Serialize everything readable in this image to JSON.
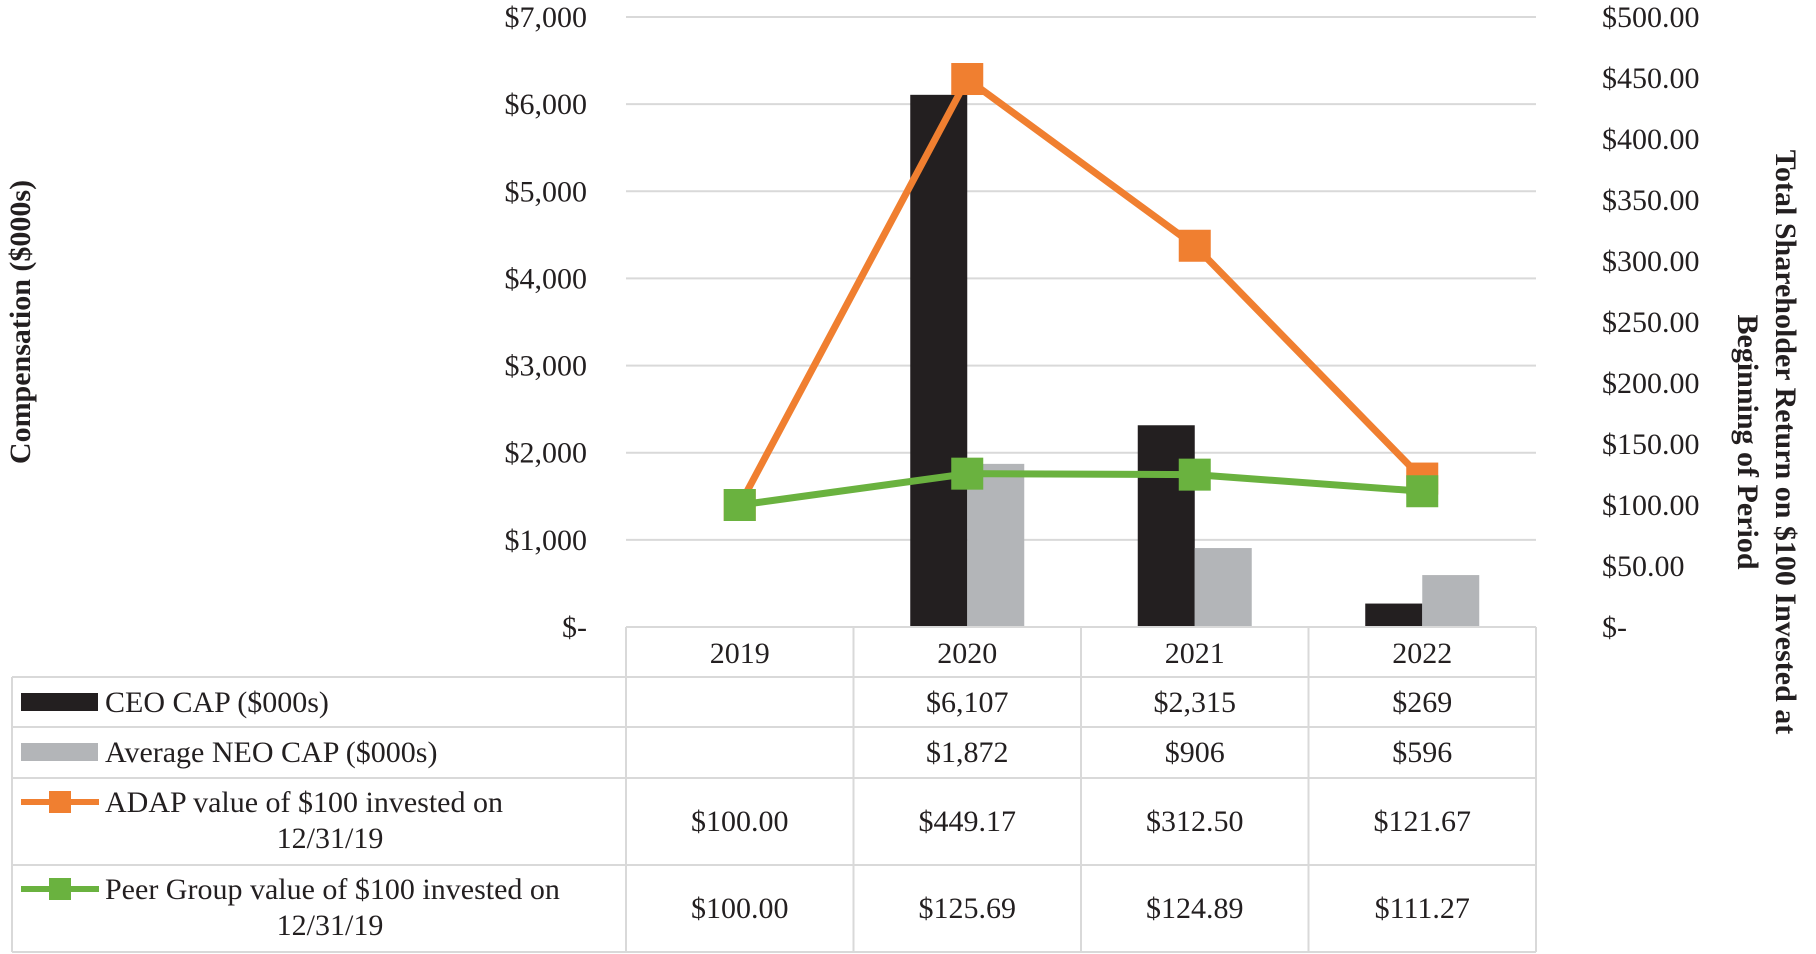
{
  "chart_data": {
    "type": "bar",
    "categories": [
      "2019",
      "2020",
      "2021",
      "2022"
    ],
    "bar_series": [
      {
        "name": "CEO CAP ($000s)",
        "values": [
          null,
          6107,
          2315,
          269
        ],
        "labels": [
          "",
          "$6,107",
          "$2,315",
          "$269"
        ],
        "color": "#231f20",
        "axis": "left"
      },
      {
        "name": "Average NEO CAP ($000s)",
        "values": [
          null,
          1872,
          906,
          596
        ],
        "labels": [
          "",
          "$1,872",
          "$906",
          "$596"
        ],
        "color": "#b3b5b8",
        "axis": "left"
      }
    ],
    "line_series": [
      {
        "name_line1": "ADAP value of $100 invested on",
        "name_line2": "12/31/19",
        "values": [
          100.0,
          449.17,
          312.5,
          121.67
        ],
        "labels": [
          "$100.00",
          "$449.17",
          "$312.50",
          "$121.67"
        ],
        "color": "#f07f30",
        "axis": "right"
      },
      {
        "name_line1": "Peer Group value of $100 invested on",
        "name_line2": "12/31/19",
        "values": [
          100.0,
          125.69,
          124.89,
          111.27
        ],
        "labels": [
          "$100.00",
          "$125.69",
          "$124.89",
          "$111.27"
        ],
        "color": "#6ab23f",
        "axis": "right"
      }
    ],
    "left_axis": {
      "title": "Compensation ($000s)",
      "ylim": [
        0,
        7000
      ],
      "ticks": [
        0,
        1000,
        2000,
        3000,
        4000,
        5000,
        6000,
        7000
      ],
      "tick_labels": [
        "$-",
        "$1,000",
        "$2,000",
        "$3,000",
        "$4,000",
        "$5,000",
        "$6,000",
        "$7,000"
      ]
    },
    "right_axis": {
      "title_line1": "Total Shareholder Return on $100 Invested at",
      "title_line2": "Beginning of Period",
      "ylim": [
        0,
        500
      ],
      "ticks": [
        0,
        50,
        100,
        150,
        200,
        250,
        300,
        350,
        400,
        450,
        500
      ],
      "tick_labels": [
        "$-",
        "$50.00",
        "$100.00",
        "$150.00",
        "$200.00",
        "$250.00",
        "$300.00",
        "$350.00",
        "$400.00",
        "$450.00",
        "$500.00"
      ]
    },
    "grid": true,
    "legend": "data table below chart"
  }
}
